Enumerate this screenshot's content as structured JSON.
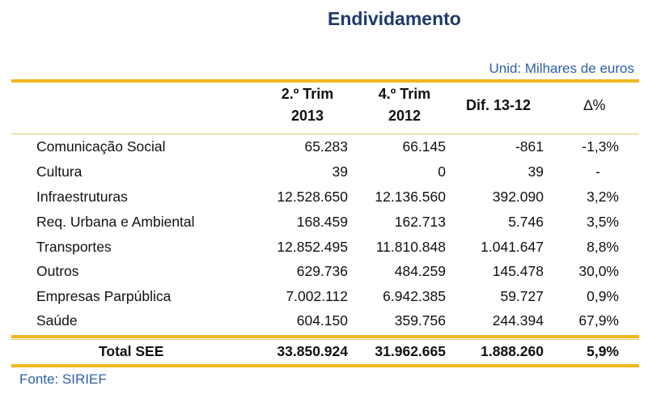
{
  "title": "Endividamento",
  "unit": "Unid: Milhares de euros",
  "source": "Fonte: SIRIEF",
  "headers": {
    "col1_line1": "2.º Trim",
    "col1_line2": "2013",
    "col2_line1": "4.º Trim",
    "col2_line2": "2012",
    "col3": "Dif. 13-12",
    "col4": "∆%"
  },
  "rows": [
    {
      "label": "Comunicação Social",
      "v1": "65.283",
      "v2": "66.145",
      "v3": "-861",
      "v4": "-1,3%"
    },
    {
      "label": "Cultura",
      "v1": "39",
      "v2": "0",
      "v3": "39",
      "v4": "-"
    },
    {
      "label": "Infraestruturas",
      "v1": "12.528.650",
      "v2": "12.136.560",
      "v3": "392.090",
      "v4": "3,2%"
    },
    {
      "label": "Req. Urbana e Ambiental",
      "v1": "168.459",
      "v2": "162.713",
      "v3": "5.746",
      "v4": "3,5%"
    },
    {
      "label": "Transportes",
      "v1": "12.852.495",
      "v2": "11.810.848",
      "v3": "1.041.647",
      "v4": "8,8%"
    },
    {
      "label": "Outros",
      "v1": "629.736",
      "v2": "484.259",
      "v3": "145.478",
      "v4": "30,0%"
    },
    {
      "label": "Empresas Parpública",
      "v1": "7.002.112",
      "v2": "6.942.385",
      "v3": "59.727",
      "v4": "0,9%"
    },
    {
      "label": "Saúde",
      "v1": "604.150",
      "v2": "359.756",
      "v3": "244.394",
      "v4": "67,9%"
    }
  ],
  "total": {
    "label": "Total SEE",
    "v1": "33.850.924",
    "v2": "31.962.665",
    "v3": "1.888.260",
    "v4": "5,9%"
  }
}
